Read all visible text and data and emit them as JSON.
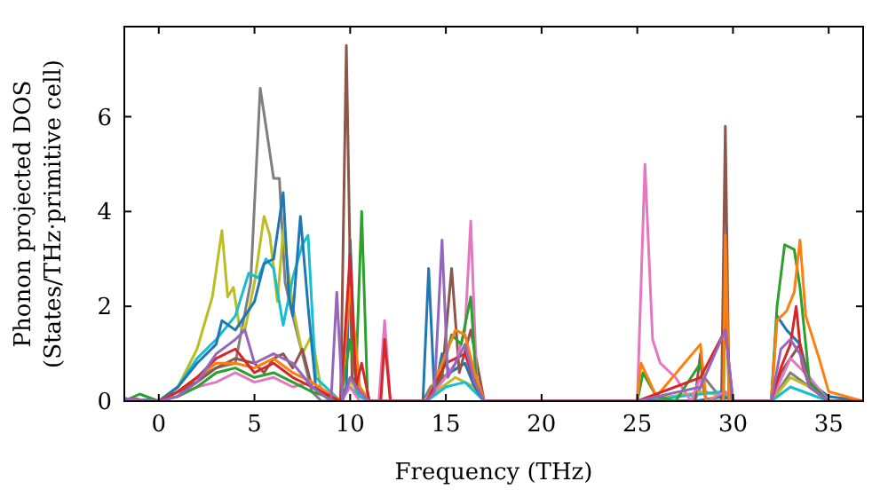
{
  "chart_data": {
    "type": "line",
    "xlabel": "Frequency (THz)",
    "ylabel": "Phonon projected DOS\n(States/THz·primitive cell)",
    "xlim": [
      -1.8,
      36.8
    ],
    "ylim": [
      0,
      7.9
    ],
    "xticks": [
      0,
      5,
      10,
      15,
      20,
      25,
      30,
      35
    ],
    "yticks": [
      0,
      2,
      4,
      6
    ],
    "grid": false,
    "marker": "none",
    "line_style": "solid",
    "series": [
      {
        "color": "#7f7f7f",
        "x": [
          -1.8,
          0,
          1,
          2,
          3,
          4,
          4.8,
          5.3,
          5.6,
          6,
          6.3,
          6.6,
          7,
          7.5,
          8,
          8.5,
          9.5,
          10,
          10.5,
          11,
          13.8,
          14.2,
          14.8,
          15.2,
          16,
          16.5,
          17,
          25,
          28,
          28.5,
          29.5,
          29.8,
          30,
          32,
          33,
          34,
          35,
          36.8
        ],
        "values": [
          0.05,
          0,
          0.1,
          0.5,
          0.7,
          0.8,
          2.5,
          6.6,
          5.8,
          4.7,
          4.7,
          2.5,
          1.8,
          1,
          0.2,
          0,
          0,
          0.5,
          0.1,
          0,
          0,
          0.3,
          0.5,
          0.6,
          0.8,
          0.3,
          0,
          0,
          0,
          0.5,
          0,
          0.2,
          0,
          0,
          0.6,
          0.3,
          0,
          0
        ]
      },
      {
        "color": "#bcbd22",
        "x": [
          -1.8,
          0,
          1,
          2,
          2.8,
          3.3,
          3.6,
          3.9,
          4.2,
          4.5,
          5,
          5.5,
          5.8,
          6.2,
          6.5,
          7,
          7.5,
          8,
          8.5,
          9.5,
          10,
          10.5,
          11,
          13.8,
          14.8,
          15.5,
          16.5,
          17,
          25,
          28.5,
          29.5,
          30,
          32,
          33,
          34,
          35,
          36.8
        ],
        "values": [
          0.05,
          0,
          0.3,
          1.1,
          2.2,
          3.6,
          2.2,
          2.4,
          1.6,
          1.5,
          2.5,
          3.9,
          3.5,
          2.1,
          3.6,
          2,
          1,
          1.4,
          0.2,
          0,
          0.4,
          0.2,
          0,
          0,
          0.3,
          0.5,
          0.3,
          0,
          0,
          0.2,
          0.1,
          0,
          0,
          0.5,
          0.3,
          0,
          0
        ]
      },
      {
        "color": "#17becf",
        "x": [
          -1.8,
          0,
          1,
          2,
          3,
          4,
          4.7,
          5.2,
          5.6,
          6,
          6.5,
          7,
          7.5,
          7.8,
          8.2,
          9.5,
          10,
          10.5,
          11,
          14,
          15,
          16,
          17,
          25,
          29.5,
          30,
          32,
          33,
          35,
          36.8
        ],
        "values": [
          0.05,
          0,
          0.3,
          0.9,
          1.3,
          1.8,
          2.7,
          2.6,
          3,
          2.8,
          1.6,
          2.6,
          3.3,
          3.5,
          0.5,
          0,
          0.3,
          0.1,
          0,
          0,
          0.3,
          0.4,
          0,
          0,
          0.2,
          0,
          0,
          0.3,
          0,
          0
        ]
      },
      {
        "color": "#1f77b4",
        "x": [
          -1.8,
          0,
          1,
          2,
          3,
          3.3,
          4,
          4.5,
          5,
          5.5,
          6,
          6.5,
          6.8,
          7,
          7.4,
          7.8,
          8.2,
          9.5,
          9.8,
          10,
          10.3,
          11,
          13.8,
          14.1,
          14.4,
          14.8,
          15.2,
          16,
          16.5,
          17,
          25,
          28,
          29.5,
          30,
          32,
          32.3,
          32.8,
          33.5,
          34,
          35,
          36.8
        ],
        "values": [
          0.05,
          0,
          0.3,
          0.8,
          1.2,
          1.7,
          1.5,
          1.8,
          2.1,
          2.9,
          3,
          4.4,
          2.2,
          1.8,
          3.9,
          2,
          0.3,
          0,
          0.3,
          3.4,
          0.3,
          0,
          0,
          2.8,
          0.2,
          1,
          0.6,
          0.8,
          0.3,
          0,
          0,
          0,
          0.1,
          0,
          0,
          1.8,
          1.5,
          1.2,
          0.4,
          0.1,
          0
        ]
      },
      {
        "color": "#8c564b",
        "x": [
          -1.8,
          0,
          1,
          2,
          3,
          4,
          5,
          5.5,
          6,
          6.5,
          7,
          7.5,
          8,
          9.5,
          9.8,
          10.1,
          10.5,
          11,
          14,
          14.8,
          15.3,
          15.7,
          16.3,
          17,
          25,
          28,
          28.3,
          28.6,
          29.4,
          29.6,
          29.8,
          32,
          32.5,
          33,
          33.5,
          34,
          35,
          36.8
        ],
        "values": [
          0.05,
          0,
          0.2,
          0.4,
          0.7,
          0.9,
          0.8,
          0.6,
          0.9,
          1,
          0.7,
          1.1,
          0.3,
          0,
          7.5,
          0.5,
          0.3,
          0,
          0,
          0.5,
          2.8,
          0.6,
          1.5,
          0,
          0,
          0,
          1,
          0,
          0,
          5.8,
          0,
          0,
          0.6,
          0.9,
          1.2,
          0.4,
          0,
          0
        ]
      },
      {
        "color": "#e377c2",
        "x": [
          1,
          2,
          3,
          4,
          5,
          6,
          7,
          8,
          9.5,
          10,
          10.5,
          11.5,
          11.8,
          12.1,
          14,
          14.8,
          15.5,
          16,
          16.3,
          16.6,
          17,
          25,
          25.4,
          25.8,
          26.2,
          27,
          27.8,
          28.3,
          28.6,
          29.6,
          30,
          32,
          33,
          34,
          35,
          36.8
        ],
        "values": [
          0.1,
          0.3,
          0.4,
          0.6,
          0.4,
          0.5,
          0.3,
          0.4,
          0,
          0.3,
          0,
          0,
          1.7,
          0,
          0,
          0.4,
          0.8,
          1.5,
          3.8,
          0.5,
          0,
          0,
          5,
          1.3,
          0.8,
          0.5,
          0,
          0.5,
          0,
          0.2,
          0,
          0,
          0.9,
          0.5,
          0,
          0
        ]
      },
      {
        "color": "#2ca02c",
        "x": [
          -1.8,
          -1,
          0,
          1,
          2,
          3,
          4,
          5,
          6,
          7,
          8,
          9.5,
          10,
          10.3,
          10.6,
          10.9,
          11,
          14,
          14.8,
          15.3,
          15.8,
          16.3,
          16.6,
          17,
          25,
          25.3,
          26,
          27,
          28.3,
          28.6,
          29.5,
          29.6,
          29.8,
          32,
          32.3,
          32.7,
          33.2,
          33.5,
          34,
          35,
          36.8
        ],
        "values": [
          0,
          0.15,
          0,
          0.1,
          0.3,
          0.6,
          0.7,
          0.5,
          0.6,
          0.4,
          0.2,
          0,
          1.3,
          0.5,
          4,
          0.2,
          0,
          0,
          0.6,
          1.4,
          1.2,
          2.2,
          0.3,
          0,
          0,
          0.6,
          0.1,
          0,
          0.8,
          0,
          0,
          3,
          0,
          0,
          2,
          3.3,
          3.2,
          2.4,
          0.4,
          0,
          0
        ]
      },
      {
        "color": "#ff7f0e",
        "x": [
          -1.8,
          0,
          1,
          2,
          3,
          4,
          5,
          6,
          7,
          8,
          9.5,
          10,
          10.5,
          11,
          14,
          14.8,
          15.5,
          16,
          16.5,
          17,
          25,
          25.2,
          26,
          28.3,
          28.6,
          29.5,
          29.6,
          29.8,
          32,
          32.3,
          32.8,
          33.2,
          33.5,
          33.8,
          34.5,
          35,
          36.8
        ],
        "values": [
          0.05,
          0,
          0.2,
          0.5,
          0.8,
          0.8,
          0.7,
          0.9,
          0.6,
          0.4,
          0,
          2.4,
          0.3,
          0,
          0,
          0.8,
          1.5,
          1.4,
          0.6,
          0,
          0,
          0.8,
          0.1,
          1.2,
          0,
          0,
          3.5,
          0,
          0,
          1.7,
          1.9,
          2.3,
          3.4,
          1.8,
          0.9,
          0.2,
          0
        ]
      },
      {
        "color": "#d62728",
        "x": [
          -1.8,
          0,
          1,
          2,
          3,
          4,
          5,
          6,
          7,
          8,
          9.5,
          10,
          10.3,
          10.6,
          10.9,
          11,
          11.6,
          11.8,
          12.1,
          14,
          15,
          16,
          16.5,
          17,
          25,
          28.3,
          29.6,
          30,
          32,
          32.5,
          33,
          33.3,
          33.6,
          34,
          35,
          36.8
        ],
        "values": [
          0.05,
          0,
          0.2,
          0.5,
          0.9,
          1.1,
          0.6,
          0.8,
          0.5,
          0.3,
          0,
          3.1,
          0.3,
          0.8,
          0.2,
          0,
          0,
          1.3,
          0,
          0,
          0.8,
          1,
          0.4,
          0,
          0,
          0.5,
          1.5,
          0,
          0,
          0.7,
          1.2,
          2,
          0.8,
          0.3,
          0,
          0
        ]
      },
      {
        "color": "#9467bd",
        "x": [
          -1.8,
          0,
          1,
          2,
          3,
          4,
          4.5,
          5,
          6,
          7,
          8,
          9,
          9.3,
          9.6,
          10,
          10.5,
          11,
          14,
          14.4,
          14.8,
          15.1,
          15.5,
          16,
          16.5,
          17,
          25,
          28.3,
          29.6,
          30,
          32,
          32.5,
          33,
          33.5,
          34,
          35
        ],
        "values": [
          0.05,
          0,
          0.1,
          0.4,
          1,
          1.3,
          1.5,
          0.8,
          1,
          0.8,
          0.3,
          0,
          2.3,
          0,
          0.5,
          0.2,
          0,
          0,
          0.2,
          3.4,
          0.5,
          0.8,
          1.2,
          0.4,
          0,
          0,
          0.3,
          1.5,
          0,
          0,
          1.1,
          1.3,
          1,
          0.3,
          0
        ]
      }
    ]
  }
}
